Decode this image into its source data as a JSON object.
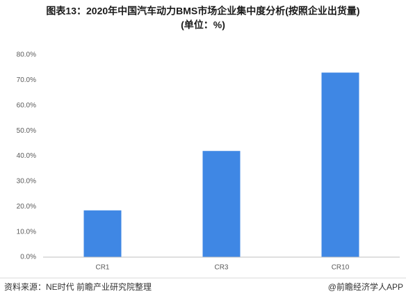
{
  "chart_data": {
    "type": "bar",
    "title": "图表13：2020年中国汽车动力BMS市场企业集中度分析(按照企业出货量)",
    "subtitle": "(单位：%)",
    "categories": [
      "CR1",
      "CR3",
      "CR10"
    ],
    "values": [
      18.5,
      42,
      73
    ],
    "color": "#3f87e4",
    "ylim": [
      0,
      80
    ],
    "yticks": [
      {
        "value": 0,
        "label": "0.0%"
      },
      {
        "value": 10,
        "label": "10.0%"
      },
      {
        "value": 20,
        "label": "20.0%"
      },
      {
        "value": 30,
        "label": "30.0%"
      },
      {
        "value": 40,
        "label": "40.0%"
      },
      {
        "value": 50,
        "label": "50.0%"
      },
      {
        "value": 60,
        "label": "60.0%"
      },
      {
        "value": 70,
        "label": "70.0%"
      },
      {
        "value": 80,
        "label": "80.0%"
      }
    ],
    "grid": false,
    "source": "资料来源：NE时代 前瞻产业研究院整理",
    "credit": "@前瞻经济学人APP"
  }
}
